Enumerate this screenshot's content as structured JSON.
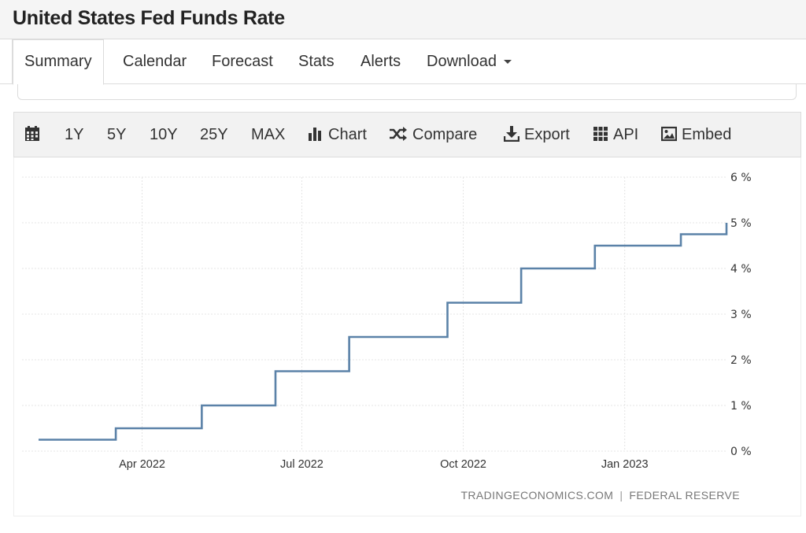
{
  "header": {
    "title": "United States Fed Funds Rate"
  },
  "tabs": [
    {
      "label": "Summary",
      "active": true
    },
    {
      "label": "Calendar"
    },
    {
      "label": "Forecast"
    },
    {
      "label": "Stats"
    },
    {
      "label": "Alerts"
    },
    {
      "label": "Download",
      "dropdown": true
    }
  ],
  "toolbar": {
    "calendar_icon": "calendar-icon",
    "ranges": [
      "1Y",
      "5Y",
      "10Y",
      "25Y",
      "MAX"
    ],
    "actions": [
      {
        "label": "Chart",
        "icon": "bar-chart-icon"
      },
      {
        "label": "Compare",
        "icon": "shuffle-icon"
      },
      {
        "label": "Export",
        "icon": "download-icon"
      },
      {
        "label": "API",
        "icon": "grid-icon"
      },
      {
        "label": "Embed",
        "icon": "image-icon"
      }
    ]
  },
  "source": {
    "left": "TRADINGECONOMICS.COM",
    "separator": "|",
    "right": "FEDERAL RESERVE"
  },
  "colors": {
    "line": "#5b82a8",
    "grid": "#e4e4e4",
    "toolbar_bg": "#f2f2f2"
  },
  "chart_data": {
    "type": "line",
    "step": true,
    "title": "",
    "xlabel": "",
    "ylabel": "",
    "x_ticks": [
      "Apr 2022",
      "Jul 2022",
      "Oct 2022",
      "Jan 2023"
    ],
    "y_ticks": [
      "0 %",
      "1 %",
      "2 %",
      "3 %",
      "4 %",
      "5 %",
      "6 %"
    ],
    "xlim": [
      "2022-02-01",
      "2023-02-28"
    ],
    "ylim": [
      0,
      6
    ],
    "grid": true,
    "y_axis_side": "right",
    "series": [
      {
        "x": [
          "2022-02-01",
          "2022-03-17",
          "2022-05-05",
          "2022-06-16",
          "2022-07-28",
          "2022-09-22",
          "2022-11-03",
          "2022-12-15",
          "2023-02-02",
          "2023-02-28"
        ],
        "values": [
          0.25,
          0.5,
          1.0,
          1.75,
          2.5,
          3.25,
          4.0,
          4.5,
          4.75,
          5.0
        ]
      }
    ]
  }
}
